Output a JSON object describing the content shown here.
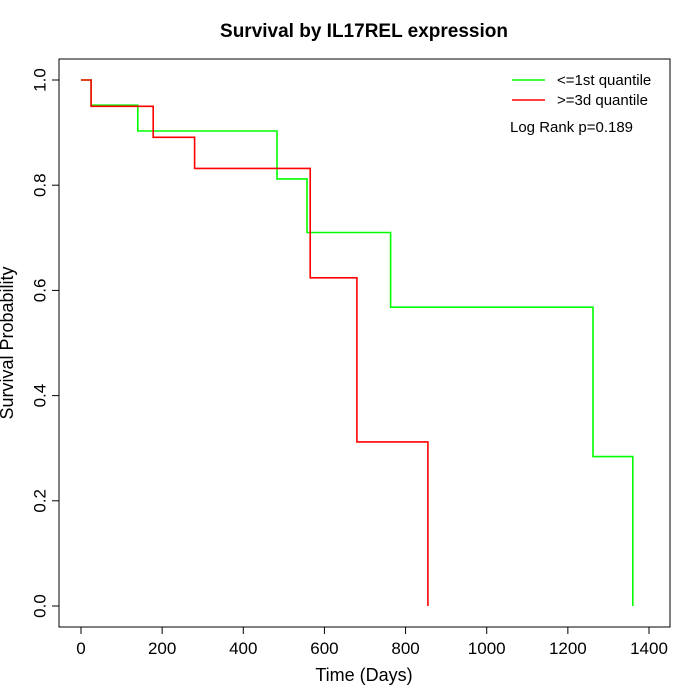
{
  "chart_data": {
    "type": "line",
    "subtype": "step",
    "title": "Survival by IL17REL expression",
    "xlabel": "Time (Days)",
    "ylabel": "Survival Probability",
    "xlim": [
      0,
      1400
    ],
    "ylim": [
      0,
      1
    ],
    "x_ticks": [
      0,
      200,
      400,
      600,
      800,
      1000,
      1200,
      1400
    ],
    "y_ticks": [
      0.0,
      0.2,
      0.4,
      0.6,
      0.8,
      1.0
    ],
    "x_tick_labels": [
      "0",
      "200",
      "400",
      "600",
      "800",
      "1000",
      "1200",
      "1400"
    ],
    "y_tick_labels": [
      "0.0",
      "0.2",
      "0.4",
      "0.6",
      "0.8",
      "1.0"
    ],
    "grid": false,
    "legend_position": "top-right",
    "annotation": "Log Rank p=0.189",
    "series": [
      {
        "name": "<=1st quantile",
        "color": "#00ff00",
        "x": [
          0,
          25,
          25,
          140,
          140,
          483,
          483,
          557,
          557,
          763,
          763,
          1262,
          1262,
          1360,
          1360
        ],
        "y": [
          1.0,
          1.0,
          0.952,
          0.952,
          0.903,
          0.903,
          0.812,
          0.812,
          0.71,
          0.71,
          0.568,
          0.568,
          0.284,
          0.284,
          0.0
        ]
      },
      {
        "name": ">=3d quantile",
        "color": "#ff0000",
        "x": [
          0,
          25,
          25,
          178,
          178,
          280,
          280,
          565,
          565,
          680,
          680,
          855,
          855
        ],
        "y": [
          1.0,
          1.0,
          0.95,
          0.95,
          0.891,
          0.891,
          0.832,
          0.832,
          0.624,
          0.624,
          0.312,
          0.312,
          0.0
        ]
      }
    ]
  }
}
